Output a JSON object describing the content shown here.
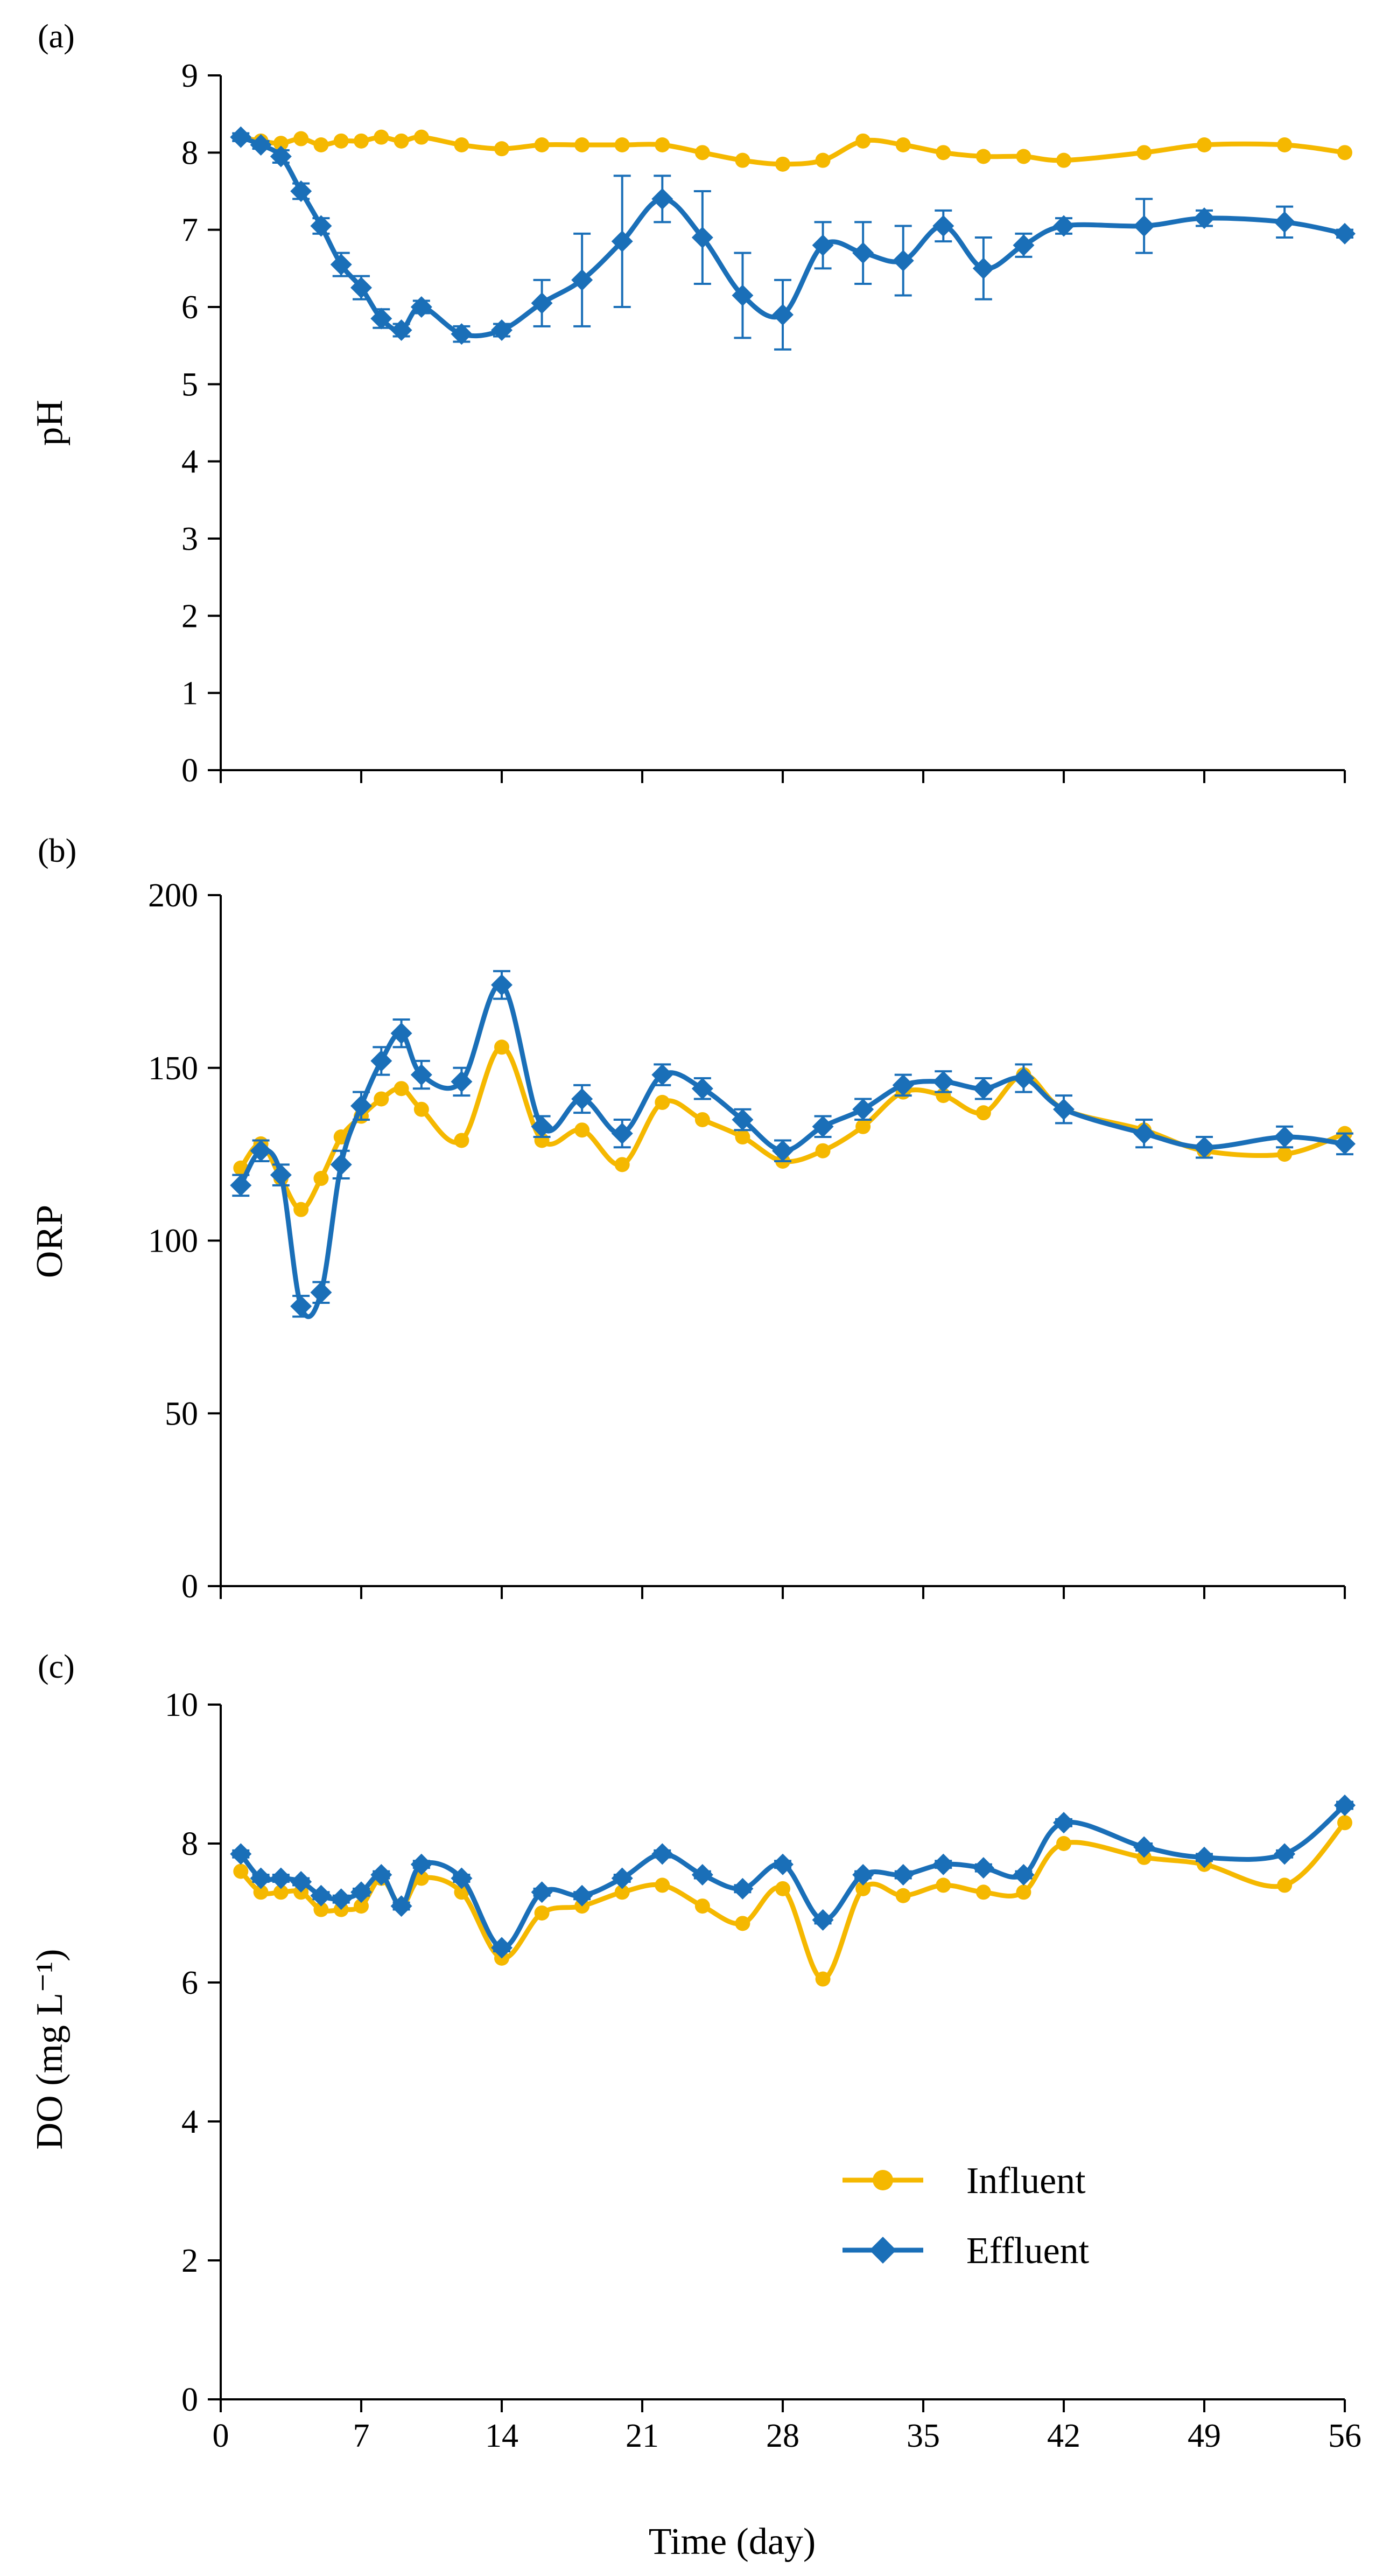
{
  "colors": {
    "influent": "#F5B800",
    "effluent": "#1A6FB8",
    "axis": "#000000"
  },
  "legend": {
    "influent_label": "Influent",
    "effluent_label": "Effluent"
  },
  "chart_data": [
    {
      "type": "line",
      "panel_label": "(a)",
      "ylabel": "pH",
      "xlabel": "",
      "xlim": [
        0,
        56
      ],
      "ylim": [
        0,
        9
      ],
      "xticks": [
        0,
        7,
        14,
        21,
        28,
        35,
        42,
        49,
        56
      ],
      "yticks": [
        0,
        1,
        2,
        3,
        4,
        5,
        6,
        7,
        8,
        9
      ],
      "ytick_labels": [
        "0",
        "1",
        "2",
        "3",
        "4",
        "5",
        "6",
        "7",
        "8",
        "9"
      ],
      "series": [
        {
          "name": "Influent",
          "x": [
            1,
            2,
            3,
            4,
            5,
            6,
            7,
            8,
            9,
            10,
            12,
            14,
            16,
            18,
            20,
            22,
            24,
            26,
            28,
            30,
            32,
            34,
            36,
            38,
            40,
            42,
            46,
            49,
            53,
            56
          ],
          "y": [
            8.2,
            8.15,
            8.12,
            8.18,
            8.1,
            8.15,
            8.15,
            8.2,
            8.15,
            8.2,
            8.1,
            8.05,
            8.1,
            8.1,
            8.1,
            8.1,
            8.0,
            7.9,
            7.85,
            7.9,
            8.15,
            8.1,
            8.0,
            7.95,
            7.95,
            7.9,
            8.0,
            8.1,
            8.1,
            8.0
          ]
        },
        {
          "name": "Effluent",
          "x": [
            1,
            2,
            3,
            4,
            5,
            6,
            7,
            8,
            9,
            10,
            12,
            14,
            16,
            18,
            20,
            22,
            24,
            26,
            28,
            30,
            32,
            34,
            36,
            38,
            40,
            42,
            46,
            49,
            53,
            56
          ],
          "y": [
            8.2,
            8.1,
            7.95,
            7.5,
            7.05,
            6.55,
            6.25,
            5.85,
            5.7,
            6.0,
            5.65,
            5.7,
            6.05,
            6.35,
            6.85,
            7.4,
            6.9,
            6.15,
            5.9,
            6.8,
            6.7,
            6.6,
            7.05,
            6.5,
            6.8,
            7.05,
            7.05,
            7.15,
            7.1,
            6.95
          ],
          "err": [
            0.05,
            0.05,
            0.08,
            0.1,
            0.1,
            0.15,
            0.15,
            0.12,
            0.08,
            0.08,
            0.1,
            0.08,
            0.3,
            0.6,
            0.85,
            0.3,
            0.6,
            0.55,
            0.45,
            0.3,
            0.4,
            0.45,
            0.2,
            0.4,
            0.15,
            0.1,
            0.35,
            0.1,
            0.2,
            0.05
          ]
        }
      ]
    },
    {
      "type": "line",
      "panel_label": "(b)",
      "ylabel": "ORP",
      "xlabel": "",
      "xlim": [
        0,
        56
      ],
      "ylim": [
        0,
        200
      ],
      "xticks": [
        0,
        7,
        14,
        21,
        28,
        35,
        42,
        49,
        56
      ],
      "yticks": [
        0,
        50,
        100,
        150,
        200
      ],
      "ytick_labels": [
        "0",
        "50",
        "100",
        "150",
        "200"
      ],
      "series": [
        {
          "name": "Influent",
          "x": [
            1,
            2,
            3,
            4,
            5,
            6,
            7,
            8,
            9,
            10,
            12,
            14,
            16,
            18,
            20,
            22,
            24,
            26,
            28,
            30,
            32,
            34,
            36,
            38,
            40,
            42,
            46,
            49,
            53,
            56
          ],
          "y": [
            121,
            128,
            118,
            109,
            118,
            130,
            136,
            141,
            144,
            138,
            129,
            156,
            129,
            132,
            122,
            140,
            135,
            130,
            123,
            126,
            133,
            143,
            142,
            137,
            148,
            138,
            132,
            126,
            125,
            131
          ]
        },
        {
          "name": "Effluent",
          "x": [
            1,
            2,
            3,
            4,
            5,
            6,
            7,
            8,
            9,
            10,
            12,
            14,
            16,
            18,
            20,
            22,
            24,
            26,
            28,
            30,
            32,
            34,
            36,
            38,
            40,
            42,
            46,
            49,
            53,
            56
          ],
          "y": [
            116,
            126,
            119,
            81,
            85,
            122,
            139,
            152,
            160,
            148,
            146,
            174,
            133,
            141,
            131,
            148,
            144,
            135,
            126,
            133,
            138,
            145,
            146,
            144,
            147,
            138,
            131,
            127,
            130,
            128
          ],
          "err": [
            3,
            3,
            3,
            3,
            3,
            4,
            4,
            4,
            4,
            4,
            4,
            4,
            3,
            4,
            4,
            3,
            3,
            3,
            3,
            3,
            3,
            3,
            3,
            3,
            4,
            4,
            4,
            3,
            3,
            3
          ]
        }
      ]
    },
    {
      "type": "line",
      "panel_label": "(c)",
      "ylabel": "DO (mg L⁻¹)",
      "xlabel": "Time (day)",
      "xlim": [
        0,
        56
      ],
      "ylim": [
        0,
        10
      ],
      "xticks": [
        0,
        7,
        14,
        21,
        28,
        35,
        42,
        49,
        56
      ],
      "xtick_labels": [
        "0",
        "7",
        "14",
        "21",
        "28",
        "35",
        "42",
        "49",
        "56"
      ],
      "yticks": [
        0,
        2,
        4,
        6,
        8,
        10
      ],
      "ytick_labels": [
        "0",
        "2",
        "4",
        "6",
        "8",
        "10"
      ],
      "series": [
        {
          "name": "Influent",
          "x": [
            1,
            2,
            3,
            4,
            5,
            6,
            7,
            8,
            9,
            10,
            12,
            14,
            16,
            18,
            20,
            22,
            24,
            26,
            28,
            30,
            32,
            34,
            36,
            38,
            40,
            42,
            46,
            49,
            53,
            56
          ],
          "y": [
            7.6,
            7.3,
            7.3,
            7.3,
            7.05,
            7.05,
            7.1,
            7.5,
            7.1,
            7.5,
            7.3,
            6.35,
            7.0,
            7.1,
            7.3,
            7.4,
            7.1,
            6.85,
            7.35,
            6.05,
            7.35,
            7.25,
            7.4,
            7.3,
            7.3,
            8.0,
            7.8,
            7.7,
            7.4,
            8.3
          ]
        },
        {
          "name": "Effluent",
          "x": [
            1,
            2,
            3,
            4,
            5,
            6,
            7,
            8,
            9,
            10,
            12,
            14,
            16,
            18,
            20,
            22,
            24,
            26,
            28,
            30,
            32,
            34,
            36,
            38,
            40,
            42,
            46,
            49,
            53,
            56
          ],
          "y": [
            7.85,
            7.5,
            7.5,
            7.45,
            7.25,
            7.2,
            7.3,
            7.55,
            7.1,
            7.7,
            7.5,
            6.5,
            7.3,
            7.25,
            7.5,
            7.85,
            7.55,
            7.35,
            7.7,
            6.9,
            7.55,
            7.55,
            7.7,
            7.65,
            7.55,
            8.3,
            7.95,
            7.8,
            7.85,
            8.55
          ],
          "err": [
            0.05,
            0.05,
            0.05,
            0.05,
            0.05,
            0.05,
            0.05,
            0.05,
            0.05,
            0.05,
            0.05,
            0.05,
            0.05,
            0.05,
            0.05,
            0.05,
            0.05,
            0.05,
            0.05,
            0.05,
            0.05,
            0.05,
            0.05,
            0.05,
            0.05,
            0.05,
            0.05,
            0.05,
            0.05,
            0.05
          ]
        }
      ]
    }
  ]
}
